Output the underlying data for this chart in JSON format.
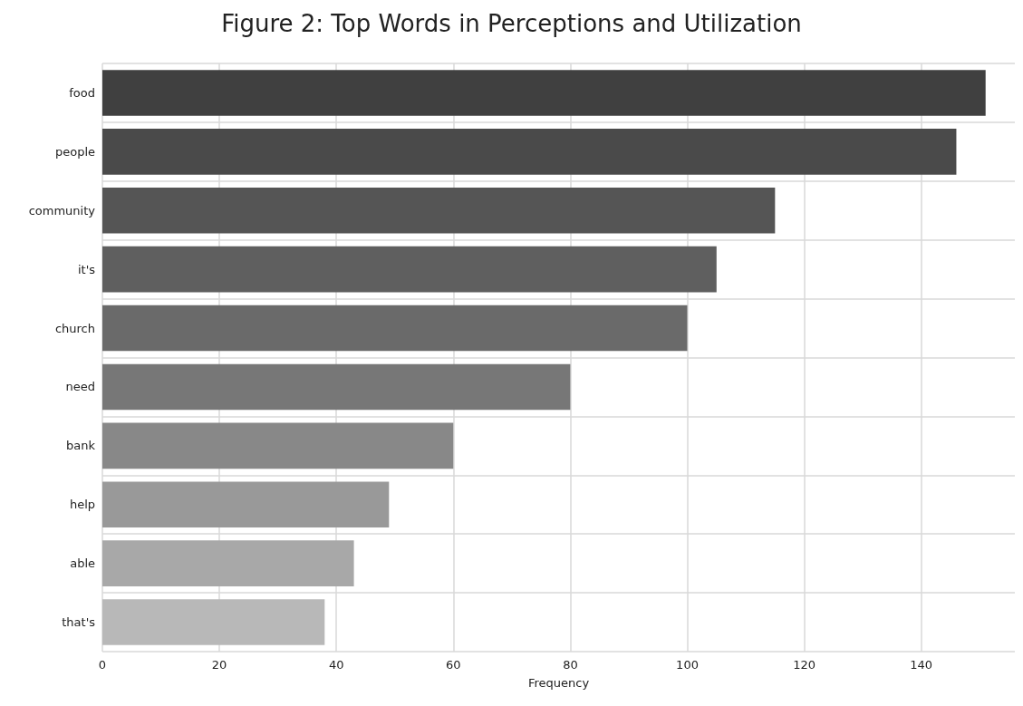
{
  "chart_data": {
    "type": "bar",
    "orientation": "horizontal",
    "title": "Figure 2: Top Words in Perceptions and Utilization",
    "xlabel": "Frequency",
    "categories": [
      "food",
      "people",
      "community",
      "it's",
      "church",
      "need",
      "bank",
      "help",
      "able",
      "that's"
    ],
    "values": [
      151,
      146,
      115,
      105,
      100,
      80,
      60,
      49,
      43,
      38
    ],
    "colors": [
      "#404040",
      "#4a4a4a",
      "#555555",
      "#5f5f5f",
      "#6a6a6a",
      "#777777",
      "#888888",
      "#999999",
      "#a8a8a8",
      "#b8b8b8"
    ],
    "xlim": [
      0,
      156
    ],
    "xticks": [
      0,
      20,
      40,
      60,
      80,
      100,
      120,
      140
    ],
    "grid": true
  }
}
